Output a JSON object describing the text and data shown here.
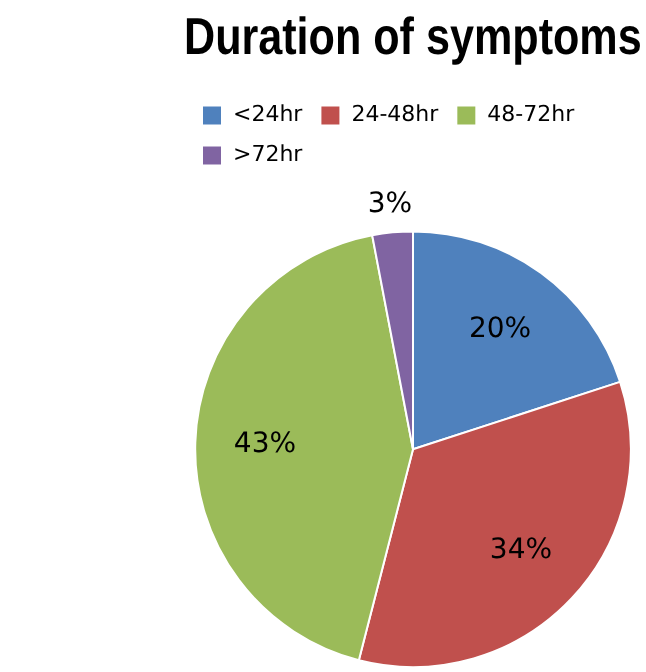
{
  "chart_data": {
    "type": "pie",
    "title": "Duration of symptoms",
    "categories": [
      "<24hr",
      "24-48hr",
      "48-72hr",
      ">72hr"
    ],
    "values": [
      20,
      34,
      43,
      3
    ],
    "colors": [
      "#4f81bd",
      "#c0504d",
      "#9bbb59",
      "#8064a2"
    ],
    "value_labels": [
      "20%",
      "34%",
      "43%",
      "3%"
    ],
    "legend": "top"
  }
}
